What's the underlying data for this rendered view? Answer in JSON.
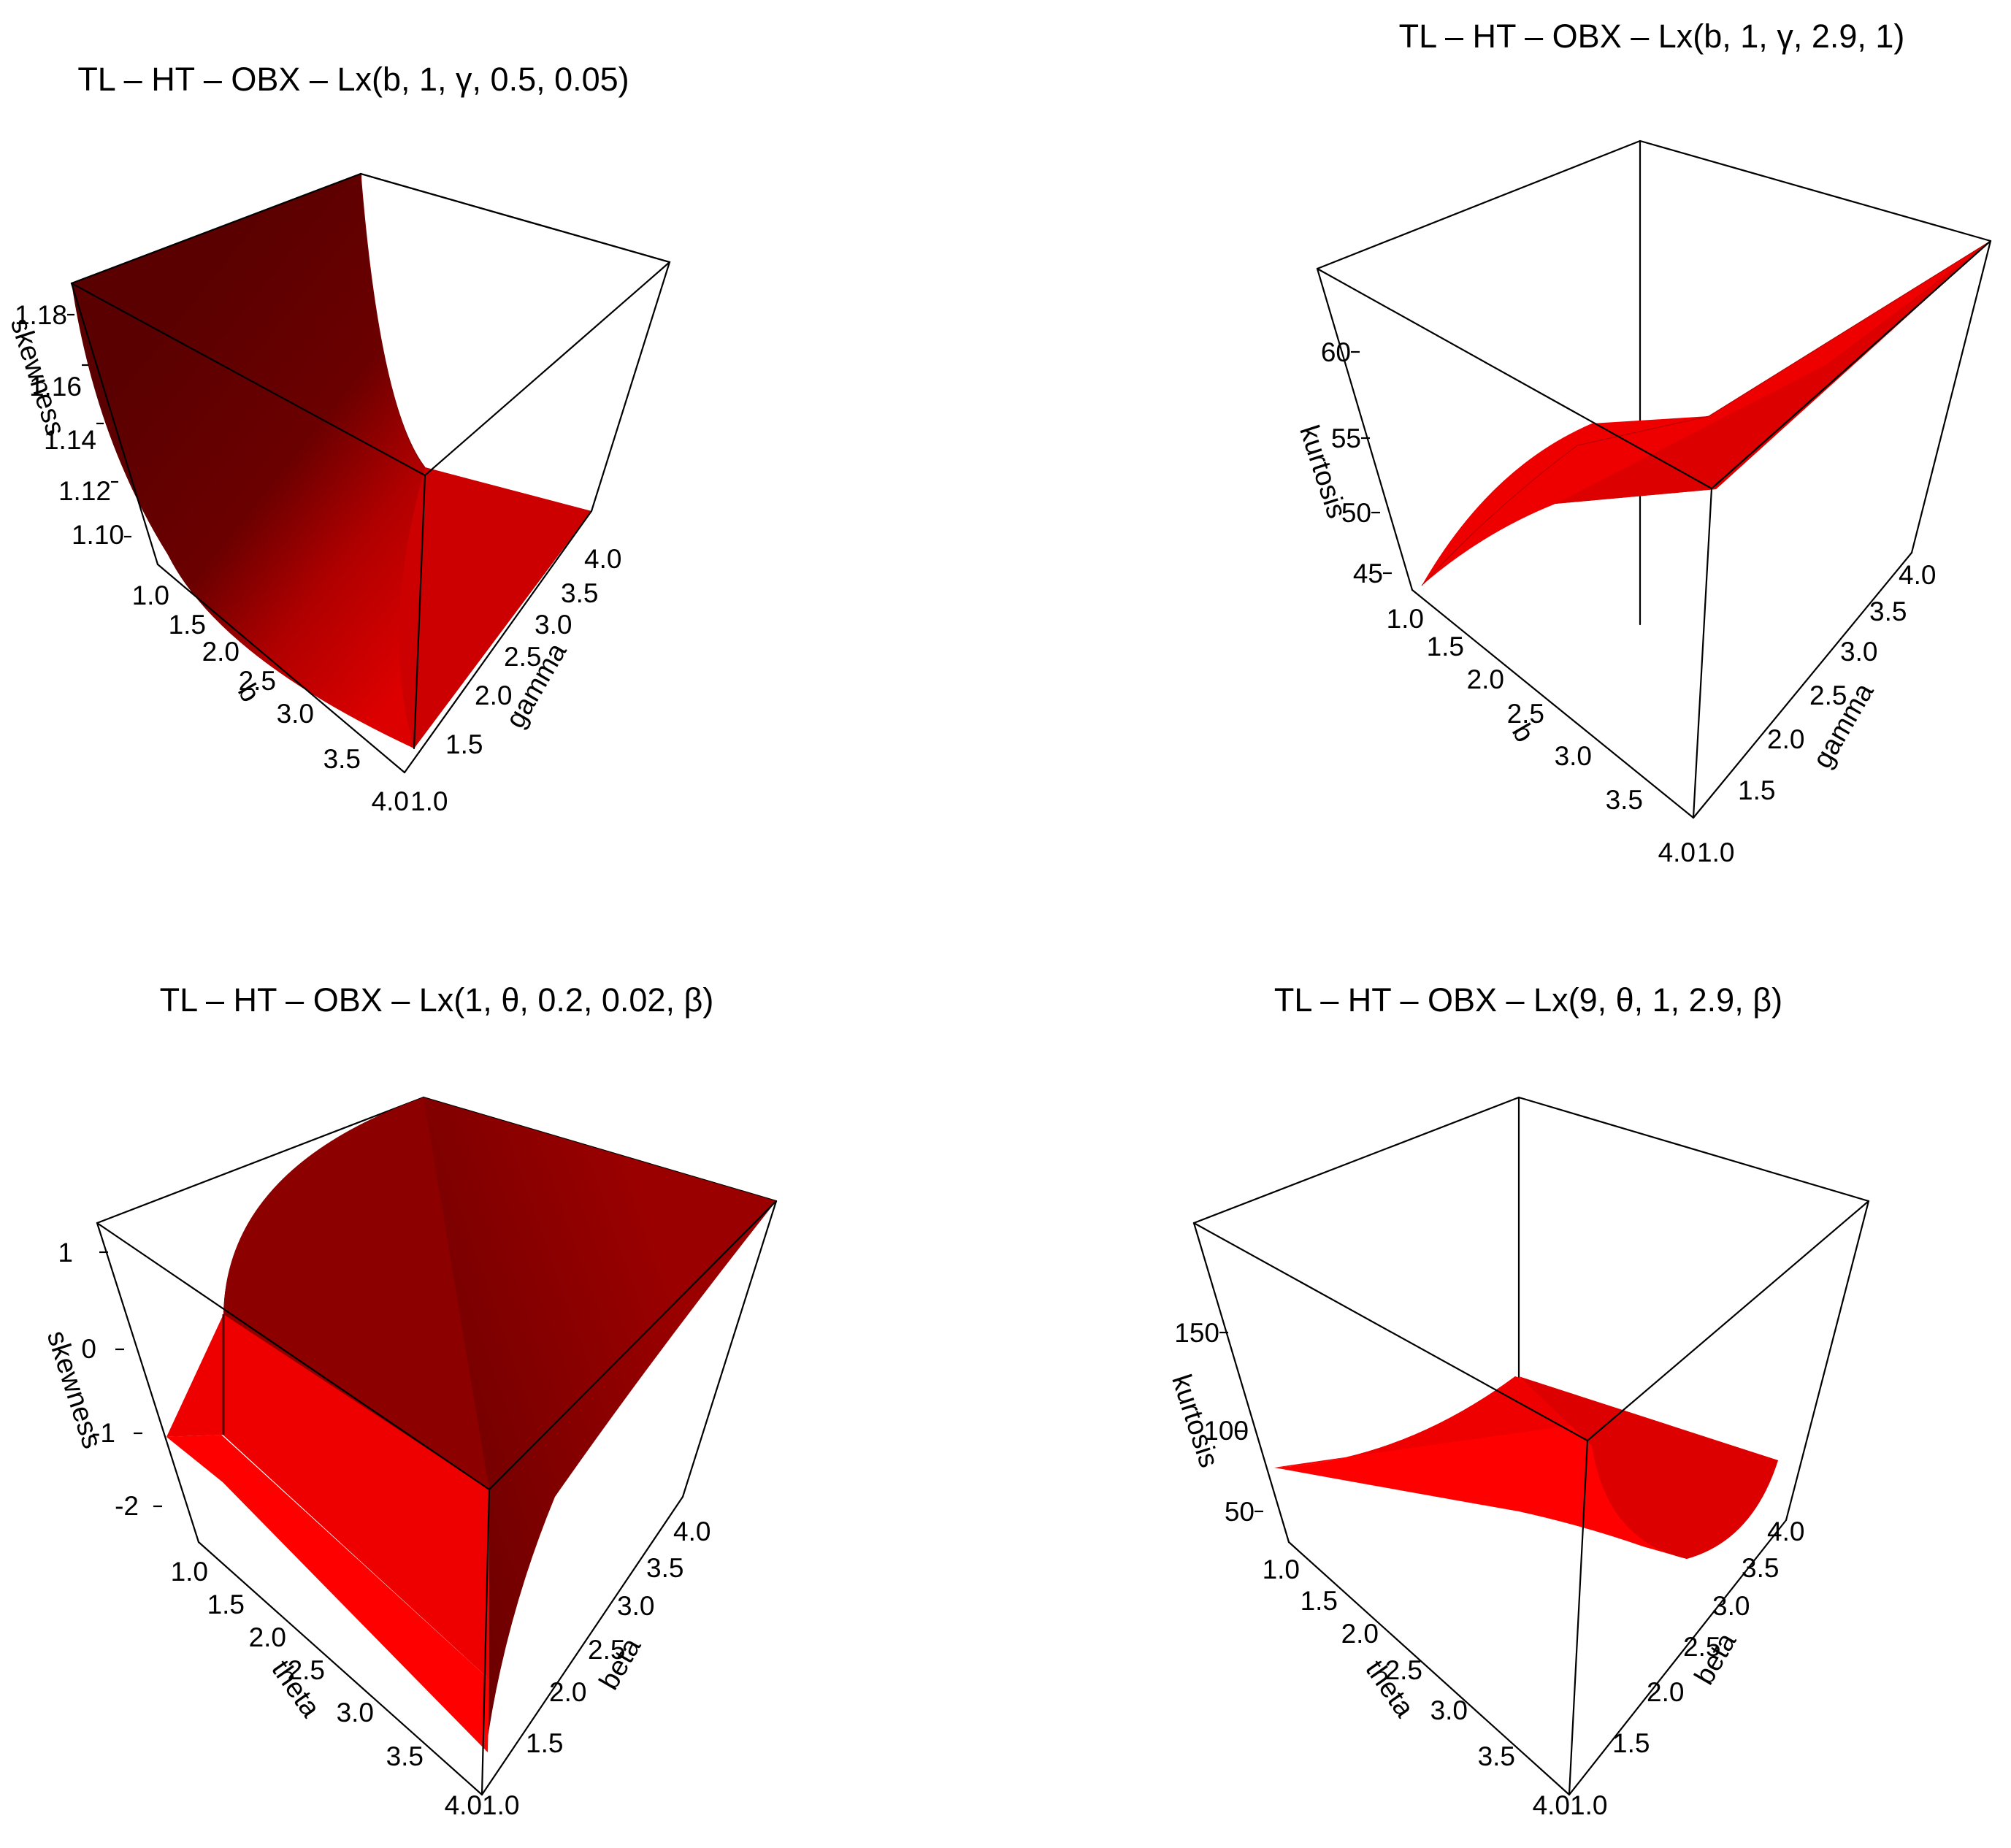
{
  "figure": {
    "panels": [
      {
        "id": "skew-gamma",
        "title": "TL – HT – OBX – Lx(b, 1, γ, 0.5, 0.05)",
        "zlabel": "skewness",
        "xlabel": "b",
        "ylabel": "gamma",
        "xticks": [
          "1.0",
          "1.5",
          "2.0",
          "2.5",
          "3.0",
          "3.5",
          "4.0"
        ],
        "yticks": [
          "1.0",
          "1.5",
          "2.0",
          "2.5",
          "3.0",
          "3.5",
          "4.0"
        ],
        "zticks": [
          "1.10",
          "1.12",
          "1.14",
          "1.16",
          "1.18"
        ],
        "colors": {
          "dark": "#5c0000",
          "bright": "#e60000"
        }
      },
      {
        "id": "kurt-gamma",
        "title": "TL – HT – OBX – Lx(b, 1, γ, 2.9, 1)",
        "zlabel": "kurtosis",
        "xlabel": "b",
        "ylabel": "gamma",
        "xticks": [
          "1.0",
          "1.5",
          "2.0",
          "2.5",
          "3.0",
          "3.5",
          "4.0"
        ],
        "yticks": [
          "1.0",
          "1.5",
          "2.0",
          "2.5",
          "3.0",
          "3.5",
          "4.0"
        ],
        "zticks": [
          "45",
          "50",
          "55",
          "60"
        ],
        "colors": {
          "dark": "#b30000",
          "bright": "#ff0000"
        }
      },
      {
        "id": "skew-beta",
        "title": "TL – HT – OBX – Lx(1, θ, 0.2, 0.02, β)",
        "zlabel": "skewness",
        "xlabel": "theta",
        "ylabel": "beta",
        "xticks": [
          "1.0",
          "1.5",
          "2.0",
          "2.5",
          "3.0",
          "3.5",
          "4.0"
        ],
        "yticks": [
          "1.0",
          "1.5",
          "2.0",
          "2.5",
          "3.0",
          "3.5",
          "4.0"
        ],
        "zticks": [
          "-2",
          "-1",
          "0",
          "1"
        ],
        "colors": {
          "dark": "#5c0000",
          "bright": "#ff0000"
        }
      },
      {
        "id": "kurt-beta",
        "title": "TL – HT – OBX – Lx(9, θ, 1, 2.9, β)",
        "zlabel": "kurtosis",
        "xlabel": "theta",
        "ylabel": "beta",
        "xticks": [
          "1.0",
          "1.5",
          "2.0",
          "2.5",
          "3.0",
          "3.5",
          "4.0"
        ],
        "yticks": [
          "1.0",
          "1.5",
          "2.0",
          "2.5",
          "3.0",
          "3.5",
          "4.0"
        ],
        "zticks": [
          "50",
          "100",
          "150"
        ],
        "colors": {
          "dark": "#cc0000",
          "bright": "#ff1a1a"
        }
      }
    ]
  },
  "chart_data": [
    {
      "type": "surface",
      "title": "TL – HT – OBX – Lx(b, 1, γ, 0.5, 0.05)",
      "xlabel": "b",
      "ylabel": "gamma",
      "zlabel": "skewness",
      "xlim": [
        1,
        4
      ],
      "ylim": [
        1,
        4
      ],
      "zlim": [
        1.1,
        1.18
      ],
      "description_of_shape": "skewness decreases with b and is nearly flat in gamma",
      "x": [
        1.0,
        1.5,
        2.0,
        2.5,
        3.0,
        3.5,
        4.0
      ],
      "z_by_x": [
        1.185,
        1.145,
        1.118,
        1.104,
        1.097,
        1.094,
        1.093
      ]
    },
    {
      "type": "surface",
      "title": "TL – HT – OBX – Lx(b, 1, γ, 2.9, 1)",
      "xlabel": "b",
      "ylabel": "gamma",
      "zlabel": "kurtosis",
      "xlim": [
        1,
        4
      ],
      "ylim": [
        1,
        4
      ],
      "zlim": [
        45,
        62
      ],
      "corners": {
        "b1_g1": 45,
        "b4_g1": 50,
        "b1_g4": 56,
        "b4_g4": 63
      }
    },
    {
      "type": "surface",
      "title": "TL – HT – OBX – Lx(1, θ, 0.2, 0.02, β)",
      "xlabel": "theta",
      "ylabel": "beta",
      "zlabel": "skewness",
      "xlim": [
        1,
        4
      ],
      "ylim": [
        1,
        4
      ],
      "zlim": [
        -2.5,
        1.3
      ],
      "y": [
        1.0,
        1.5,
        2.0,
        2.5,
        3.0,
        3.5,
        4.0
      ],
      "z_by_y": [
        -1.0,
        0.2,
        0.7,
        0.95,
        1.1,
        1.2,
        1.3
      ]
    },
    {
      "type": "surface",
      "title": "TL – HT – OBX – Lx(9, θ, 1, 2.9, β)",
      "xlabel": "theta",
      "ylabel": "beta",
      "zlabel": "kurtosis",
      "xlim": [
        1,
        4
      ],
      "ylim": [
        1,
        4
      ],
      "zlim": [
        30,
        190
      ],
      "corners": {
        "t1_b1": 105,
        "t4_b1": 40,
        "t1_b4": 72,
        "t4_b4": 92
      }
    }
  ]
}
